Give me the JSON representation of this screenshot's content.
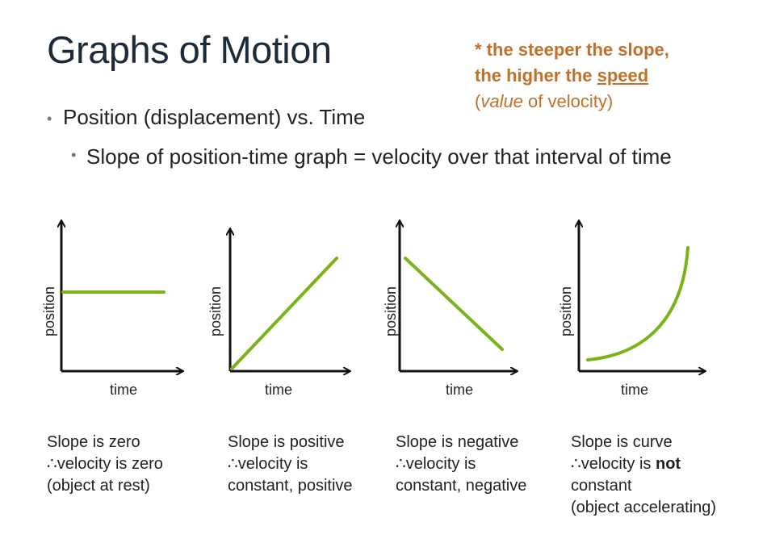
{
  "title": "Graphs of Motion",
  "note": {
    "line1": "* the steeper the slope,",
    "line2": "the higher the",
    "line2_emphasis": "speed",
    "line3_open": "(",
    "line3_italic": "value",
    "line3_rest": "of velocity)"
  },
  "bullets": [
    "Position (displacement) vs. Time",
    "Slope of position-time graph = velocity over that interval of time"
  ],
  "graphs": [
    {
      "y_label": "position",
      "x_label": "time",
      "caption": [
        [
          "Slope is zero"
        ],
        [
          "∴velocity is zero"
        ],
        [
          "(object at rest)"
        ]
      ]
    },
    {
      "y_label": "position",
      "x_label": "time",
      "caption": [
        [
          "Slope is positive"
        ],
        [
          "∴velocity is"
        ],
        [
          "constant, positive"
        ]
      ]
    },
    {
      "y_label": "position",
      "x_label": "time",
      "caption": [
        [
          "Slope is negative"
        ],
        [
          "∴velocity is"
        ],
        [
          "constant, negative"
        ]
      ]
    },
    {
      "y_label": "position",
      "x_label": "time",
      "caption": [
        [
          "Slope is curve"
        ],
        [
          "∴velocity is",
          "not"
        ],
        [
          "constant"
        ],
        [
          "(object accelerating)"
        ]
      ]
    }
  ]
}
